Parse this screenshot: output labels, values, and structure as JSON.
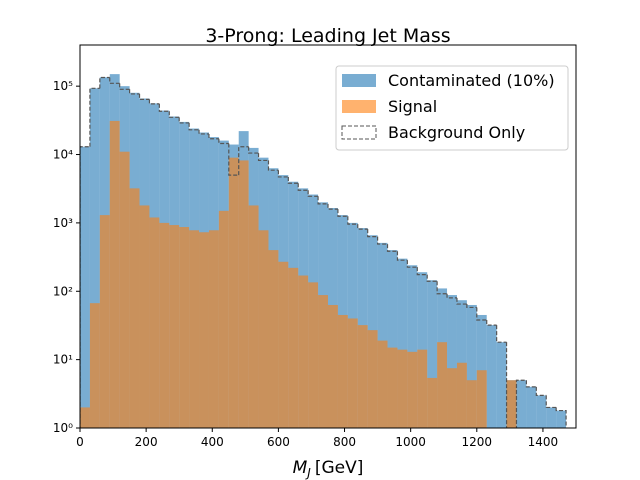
{
  "chart_data": {
    "type": "histogram",
    "title": "3-Prong: Leading Jet Mass",
    "xlabel": {
      "symbol": "M",
      "subscript": "J",
      "unit": "[GeV]"
    },
    "bins": [
      0,
      30,
      60,
      90,
      120,
      150,
      180,
      210,
      240,
      270,
      300,
      330,
      360,
      390,
      420,
      450,
      480,
      510,
      540,
      570,
      600,
      630,
      660,
      690,
      720,
      750,
      780,
      810,
      840,
      870,
      900,
      930,
      960,
      990,
      1020,
      1050,
      1080,
      1110,
      1140,
      1170,
      1200,
      1230,
      1260,
      1290,
      1320,
      1350,
      1380,
      1410,
      1440,
      1470
    ],
    "series": [
      {
        "name": "Contaminated (10%)",
        "color": "#1f77b4",
        "alpha": 0.6,
        "style": "filled",
        "values": [
          13000,
          93000,
          135000,
          150000,
          100000,
          80000,
          66000,
          56000,
          44000,
          36000,
          30000,
          24000,
          21000,
          18000,
          16000,
          14000,
          22000,
          12500,
          9000,
          6300,
          5000,
          4000,
          3200,
          2600,
          2000,
          1650,
          1300,
          1000,
          840,
          660,
          510,
          400,
          300,
          240,
          190,
          145,
          110,
          88,
          74,
          63,
          45,
          32,
          18,
          5,
          5,
          4,
          3,
          2,
          1.8
        ]
      },
      {
        "name": "Signal",
        "color": "#ff7f0e",
        "alpha": 0.6,
        "style": "filled",
        "values": [
          2,
          67,
          1300,
          31000,
          11000,
          3200,
          1800,
          1200,
          1000,
          930,
          870,
          780,
          730,
          780,
          1500,
          9000,
          8200,
          1800,
          780,
          400,
          270,
          220,
          170,
          135,
          88,
          63,
          45,
          40,
          32,
          27,
          19,
          15,
          14,
          13,
          14,
          5.4,
          18,
          7.5,
          9,
          5,
          7,
          0,
          0,
          5,
          0,
          0,
          0,
          0,
          0
        ]
      },
      {
        "name": "Background Only",
        "color": "#555555",
        "style": "dashed-step",
        "values": [
          13000,
          93000,
          134000,
          110000,
          90000,
          77000,
          64000,
          55000,
          43000,
          35000,
          29000,
          23000,
          20000,
          17000,
          14500,
          5000,
          13000,
          10500,
          8200,
          5900,
          4700,
          3800,
          3000,
          2450,
          1900,
          1590,
          1250,
          960,
          810,
          630,
          490,
          385,
          285,
          225,
          175,
          140,
          92,
          80,
          65,
          58,
          38,
          32,
          18,
          0,
          5,
          4,
          3,
          2,
          1.8
        ]
      }
    ],
    "xlim": [
      0,
      1500
    ],
    "xticks": [
      0,
      200,
      400,
      600,
      800,
      1000,
      1200,
      1400
    ],
    "ylim": [
      1,
      400000
    ],
    "log_y": true,
    "yticks": [
      {
        "value": 1,
        "label": "10⁰"
      },
      {
        "value": 10,
        "label": "10¹"
      },
      {
        "value": 100,
        "label": "10²"
      },
      {
        "value": 1000,
        "label": "10³"
      },
      {
        "value": 10000,
        "label": "10⁴"
      },
      {
        "value": 100000,
        "label": "10⁵"
      }
    ],
    "legend": "upper right"
  }
}
